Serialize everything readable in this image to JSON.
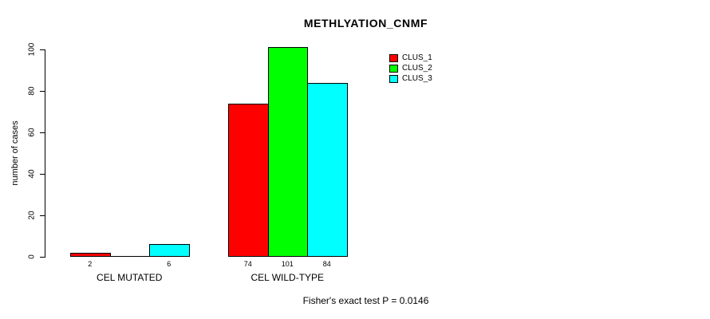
{
  "chart_data": {
    "type": "bar",
    "title": "METHLYATION_CNMF",
    "xlabel": "",
    "ylabel": "number of cases",
    "ylim": [
      0,
      100
    ],
    "yticks": [
      0,
      20,
      40,
      60,
      80,
      100
    ],
    "grid": false,
    "categories": [
      "CEL MUTATED",
      "CEL WILD-TYPE"
    ],
    "series": [
      {
        "name": "CLUS_1",
        "color": "#ff0000",
        "values": [
          2,
          74
        ]
      },
      {
        "name": "CLUS_2",
        "color": "#00ff00",
        "values": [
          0,
          101
        ]
      },
      {
        "name": "CLUS_3",
        "color": "#00ffff",
        "values": [
          6,
          84
        ]
      }
    ],
    "bar_value_labels": [
      "2",
      "6",
      "74",
      "101",
      "84"
    ],
    "legend": {
      "position": "top-right",
      "entries": [
        "CLUS_1",
        "CLUS_2",
        "CLUS_3"
      ]
    },
    "annotation": "Fisher's exact test P = 0.0146"
  }
}
